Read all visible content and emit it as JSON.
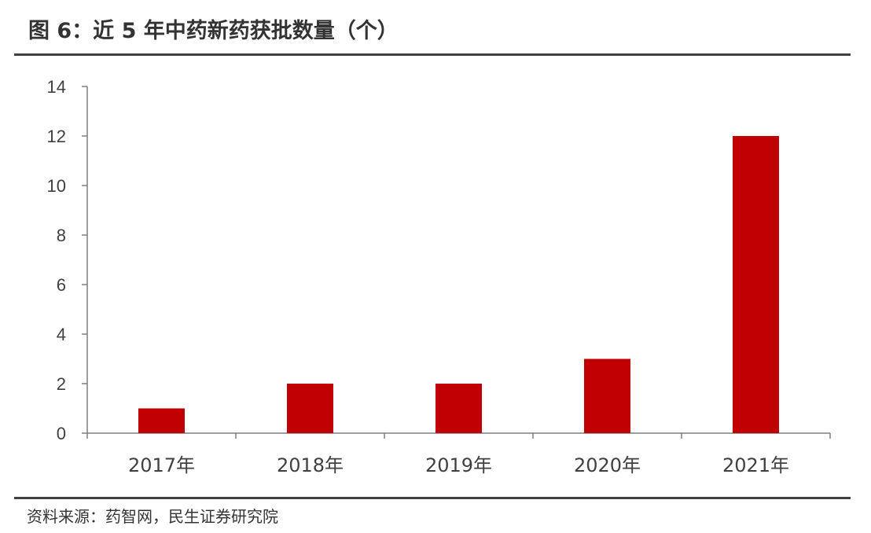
{
  "figure": {
    "title": "图 6：近 5 年中药新药获批数量（个）",
    "source": "资料来源：药智网，民生证券研究院"
  },
  "colors": {
    "bar": "#c00000",
    "axis": "#7f7f7f",
    "text": "#404040"
  },
  "chart_data": {
    "type": "bar",
    "categories": [
      "2017年",
      "2018年",
      "2019年",
      "2020年",
      "2021年"
    ],
    "values": [
      1,
      2,
      2,
      3,
      12
    ],
    "title": "",
    "xlabel": "",
    "ylabel": "",
    "ylim": [
      0,
      14
    ],
    "yticks": [
      0,
      2,
      4,
      6,
      8,
      10,
      12,
      14
    ],
    "grid": false,
    "legend": "none"
  }
}
